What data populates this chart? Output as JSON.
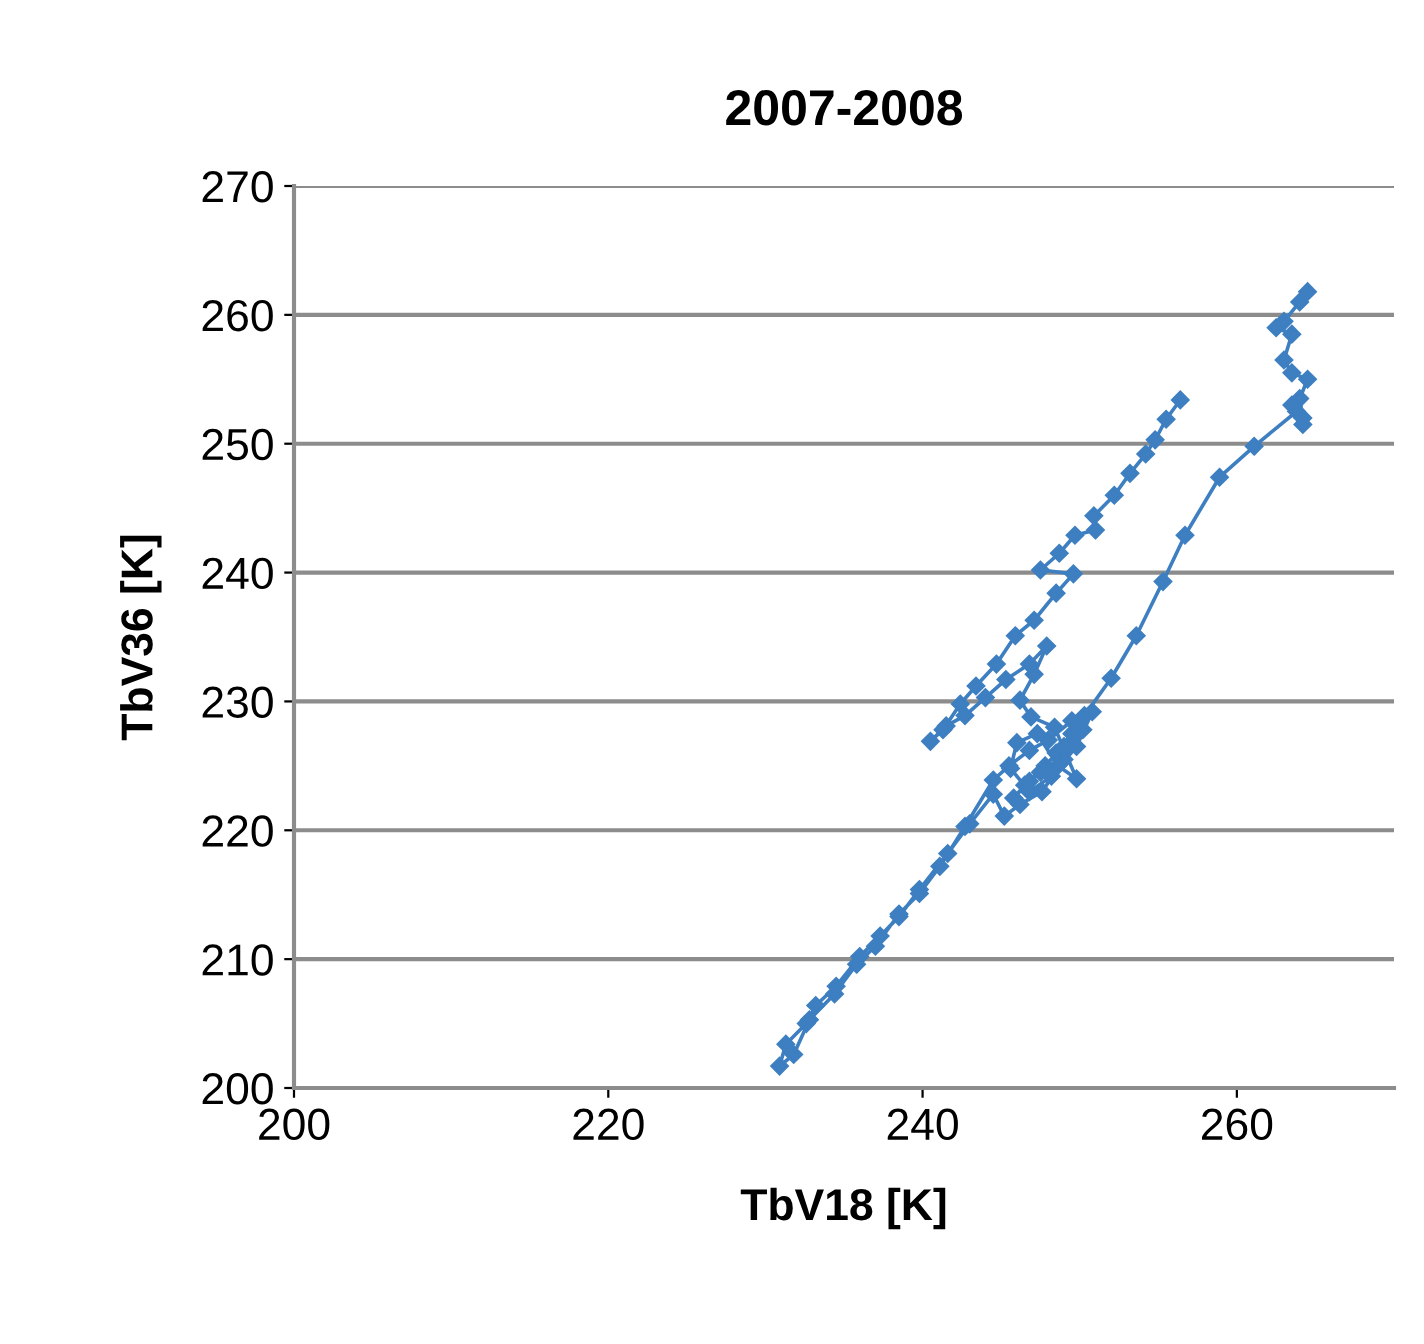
{
  "chart_data": {
    "type": "line",
    "title": "2007-2008",
    "xlabel": "TbV18 [K]",
    "ylabel": "TbV36 [K]",
    "series": [
      {
        "color": "#3d7fc1",
        "x": [
          264.5,
          264.0,
          263.0,
          262.5,
          263.5,
          263.0,
          263.5,
          264.5,
          264.0,
          264.2,
          263.5,
          264.2,
          263.8,
          261.1,
          258.9,
          256.7,
          255.3,
          253.6,
          252.0,
          250.3,
          249.5,
          248.5,
          247.5,
          246.5,
          245.8,
          246.8,
          247.8,
          249.0,
          250.2,
          249.0,
          247.6,
          246.2,
          245.2,
          244.5,
          243.0,
          241.6,
          239.8,
          238.5,
          237.3,
          236.0,
          234.5,
          233.2,
          232.6,
          231.3,
          230.9,
          231.8,
          232.8,
          234.4,
          235.8,
          237.0,
          238.5,
          239.8,
          241.1,
          242.7,
          244.5,
          245.5,
          246.8,
          248.0,
          249.5,
          250.8,
          249.8,
          248.2,
          246.8,
          245.6,
          246.0,
          247.3,
          248.6,
          249.8,
          248.4,
          246.9,
          246.2,
          247.1,
          247.9,
          246.8,
          245.3,
          244.0,
          242.7,
          241.5,
          240.5,
          241.3,
          242.4,
          243.4,
          244.7,
          245.9,
          247.1,
          248.5,
          249.6,
          247.5,
          248.7,
          249.7,
          251.0,
          250.9,
          252.2,
          253.2,
          254.2,
          254.8,
          255.5,
          256.4
        ],
        "values": [
          261.8,
          261.0,
          259.5,
          259.0,
          258.5,
          256.5,
          255.5,
          255.0,
          253.5,
          252.0,
          253.0,
          251.5,
          252.5,
          249.8,
          247.4,
          242.9,
          239.3,
          235.1,
          231.8,
          228.9,
          227.5,
          226.0,
          224.5,
          223.5,
          222.5,
          223.8,
          225.0,
          226.5,
          227.8,
          225.5,
          223.0,
          222.0,
          221.1,
          222.8,
          220.5,
          218.2,
          215.4,
          213.3,
          211.8,
          210.2,
          207.9,
          206.4,
          205.0,
          203.4,
          201.7,
          202.6,
          205.3,
          207.3,
          209.6,
          211.0,
          213.5,
          215.1,
          217.2,
          220.3,
          223.9,
          225.0,
          226.2,
          227.0,
          228.5,
          229.2,
          226.5,
          224.2,
          223.0,
          224.8,
          226.8,
          227.5,
          225.0,
          224.0,
          228.0,
          228.8,
          230.1,
          232.1,
          234.3,
          232.9,
          231.7,
          230.3,
          228.9,
          228.1,
          226.9,
          227.8,
          229.8,
          231.2,
          232.9,
          235.1,
          236.3,
          238.4,
          239.9,
          240.2,
          241.5,
          242.9,
          243.3,
          244.4,
          246.0,
          247.7,
          249.2,
          250.3,
          251.9,
          253.4
        ]
      }
    ],
    "xlim": [
      200,
      270
    ],
    "ylim": [
      200,
      270
    ],
    "xticks": [
      200,
      220,
      240,
      260
    ],
    "yticks": [
      200,
      210,
      220,
      230,
      240,
      250,
      260,
      270
    ],
    "grid": "y",
    "marker": "diamond",
    "line_style": "solid"
  }
}
